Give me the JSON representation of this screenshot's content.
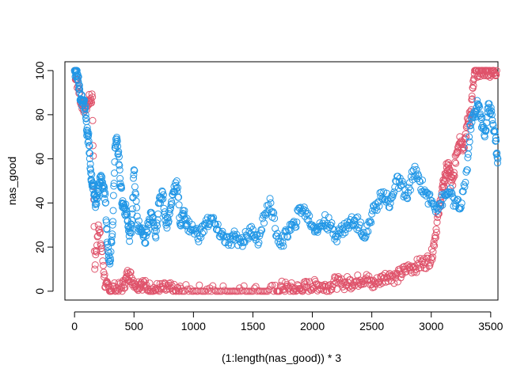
{
  "chart_data": {
    "type": "scatter",
    "title": "",
    "xlabel": "(1:length(nas_good)) * 3",
    "ylabel": "nas_good",
    "xlim": [
      -81,
      3561
    ],
    "ylim": [
      -4,
      104
    ],
    "x_ticks": [
      0,
      500,
      1000,
      1500,
      2000,
      2500,
      3000,
      3500
    ],
    "y_ticks": [
      0,
      20,
      40,
      60,
      80,
      100
    ],
    "x_tick_labels": [
      "0",
      "500",
      "1000",
      "1500",
      "2000",
      "2500",
      "3000",
      "3500"
    ],
    "y_tick_labels": [
      "0",
      "20",
      "40",
      "60",
      "80",
      "100"
    ],
    "grid": false,
    "legend": "none",
    "marker": "open-circle",
    "series": [
      {
        "color": "#DF536B",
        "x": [
          0,
          30,
          60,
          90,
          120,
          150,
          170,
          200,
          230,
          260,
          290,
          330,
          380,
          420,
          450,
          480,
          520,
          560,
          600,
          650,
          700,
          750,
          800,
          850,
          900,
          1000,
          1100,
          1200,
          1300,
          1400,
          1500,
          1600,
          1700,
          1750,
          1800,
          1850,
          1900,
          1950,
          2000,
          2050,
          2100,
          2150,
          2200,
          2250,
          2300,
          2350,
          2400,
          2450,
          2500,
          2550,
          2600,
          2650,
          2700,
          2750,
          2800,
          2850,
          2900,
          2950,
          3000,
          3030,
          3060,
          3090,
          3110,
          3130,
          3150,
          3180,
          3210,
          3240,
          3270,
          3300,
          3330,
          3350,
          3370,
          3400,
          3430,
          3460,
          3490,
          3520,
          3550
        ],
        "y": [
          100,
          93,
          85,
          83,
          86,
          88,
          10,
          30,
          18,
          2,
          1,
          1,
          1,
          3,
          8,
          6,
          3,
          4,
          2,
          1,
          1,
          1,
          1,
          0,
          0,
          0,
          0,
          0,
          0,
          0,
          0,
          0,
          0,
          2,
          1,
          1,
          1,
          2,
          2,
          3,
          2,
          3,
          4,
          3,
          4,
          4,
          5,
          6,
          3,
          4,
          6,
          8,
          6,
          8,
          10,
          11,
          12,
          13,
          15,
          24,
          35,
          45,
          50,
          56,
          55,
          48,
          62,
          70,
          65,
          75,
          80,
          92,
          100,
          100,
          100,
          100,
          100,
          100,
          100
        ]
      },
      {
        "color": "#2297E6",
        "x": [
          0,
          15,
          30,
          45,
          60,
          75,
          90,
          105,
          120,
          135,
          150,
          165,
          180,
          200,
          220,
          240,
          260,
          280,
          300,
          320,
          340,
          360,
          380,
          400,
          420,
          440,
          460,
          480,
          500,
          530,
          560,
          590,
          620,
          650,
          680,
          710,
          740,
          770,
          800,
          830,
          860,
          890,
          920,
          950,
          1000,
          1050,
          1100,
          1150,
          1200,
          1250,
          1300,
          1350,
          1400,
          1450,
          1500,
          1550,
          1600,
          1650,
          1700,
          1750,
          1800,
          1850,
          1900,
          1950,
          2000,
          2050,
          2100,
          2150,
          2200,
          2250,
          2300,
          2350,
          2400,
          2450,
          2500,
          2550,
          2600,
          2650,
          2700,
          2750,
          2800,
          2850,
          2900,
          2950,
          3000,
          3050,
          3100,
          3150,
          3200,
          3250,
          3300,
          3330,
          3360,
          3390,
          3420,
          3450,
          3480,
          3510,
          3540,
          3560
        ],
        "y": [
          100,
          100,
          97,
          90,
          87,
          85,
          83,
          72,
          68,
          55,
          48,
          44,
          40,
          45,
          52,
          48,
          40,
          18,
          15,
          30,
          65,
          68,
          55,
          40,
          38,
          35,
          25,
          30,
          55,
          30,
          28,
          22,
          30,
          35,
          25,
          40,
          45,
          30,
          35,
          45,
          50,
          30,
          35,
          30,
          28,
          25,
          30,
          33,
          28,
          25,
          22,
          25,
          22,
          25,
          28,
          22,
          35,
          40,
          25,
          22,
          28,
          30,
          38,
          35,
          30,
          28,
          32,
          30,
          25,
          28,
          30,
          32,
          30,
          25,
          35,
          40,
          45,
          38,
          50,
          48,
          42,
          55,
          50,
          45,
          40,
          38,
          42,
          45,
          40,
          38,
          55,
          75,
          80,
          85,
          78,
          70,
          85,
          80,
          68,
          60
        ]
      }
    ]
  }
}
